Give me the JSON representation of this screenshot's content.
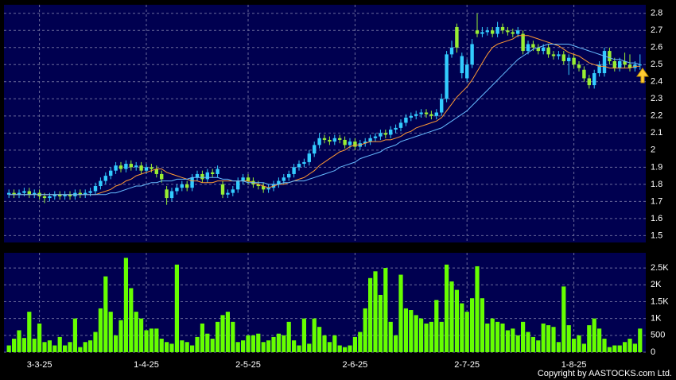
{
  "chart_data": [
    {
      "type": "candlestick",
      "up_color": "#33ccff",
      "down_color": "#99ee33",
      "ylim": [
        1.46,
        2.85
      ],
      "yticks": [
        1.5,
        1.6,
        1.7,
        1.8,
        1.9,
        2,
        2.1,
        2.2,
        2.3,
        2.4,
        2.5,
        2.6,
        2.7,
        2.8
      ],
      "grid": true,
      "categories": [
        null,
        null,
        null,
        null,
        null,
        null,
        "3-3-25",
        null,
        null,
        null,
        null,
        null,
        null,
        null,
        null,
        null,
        null,
        null,
        null,
        null,
        null,
        null,
        null,
        null,
        null,
        null,
        null,
        "1-4-25",
        null,
        null,
        null,
        null,
        null,
        null,
        null,
        null,
        null,
        null,
        null,
        null,
        null,
        null,
        null,
        null,
        null,
        null,
        null,
        "2-5-25",
        null,
        null,
        null,
        null,
        null,
        null,
        null,
        null,
        null,
        null,
        null,
        null,
        null,
        null,
        null,
        null,
        null,
        null,
        null,
        null,
        "2-6-25",
        null,
        null,
        null,
        null,
        null,
        null,
        null,
        null,
        null,
        null,
        null,
        null,
        null,
        null,
        null,
        null,
        null,
        null,
        null,
        null,
        null,
        "2-7-25",
        null,
        null,
        null,
        null,
        null,
        null,
        null,
        null,
        null,
        null,
        null,
        null,
        null,
        null,
        null,
        null,
        null,
        null,
        null,
        null,
        "1-8-25",
        null,
        null,
        null,
        null,
        null,
        null,
        null,
        null,
        null,
        null,
        null,
        null,
        null
      ],
      "open": [
        1.74,
        1.75,
        1.74,
        1.75,
        1.76,
        1.74,
        1.75,
        1.73,
        1.72,
        1.73,
        1.74,
        1.73,
        1.74,
        1.73,
        1.75,
        1.74,
        1.75,
        1.76,
        1.79,
        1.82,
        1.85,
        1.88,
        1.91,
        1.89,
        1.92,
        1.9,
        1.91,
        1.88,
        1.9,
        1.89,
        1.86,
        1.77,
        1.72,
        1.76,
        1.78,
        1.8,
        1.78,
        1.84,
        1.86,
        1.83,
        1.87,
        1.86,
        1.8,
        1.74,
        1.75,
        1.77,
        1.82,
        1.84,
        1.82,
        1.8,
        1.79,
        1.77,
        1.78,
        1.8,
        1.82,
        1.84,
        1.86,
        1.9,
        1.92,
        1.93,
        1.98,
        2.03,
        2.07,
        2.06,
        2.05,
        2.07,
        2.06,
        2.03,
        2.05,
        2.02,
        2.04,
        2.05,
        2.07,
        2.08,
        2.1,
        2.09,
        2.12,
        2.13,
        2.16,
        2.19,
        2.2,
        2.21,
        2.22,
        2.21,
        2.2,
        2.22,
        2.3,
        2.56,
        2.72,
        2.45,
        2.42,
        2.5,
        2.7,
        2.68,
        2.69,
        2.7,
        2.68,
        2.72,
        2.7,
        2.69,
        2.68,
        2.68,
        2.58,
        2.62,
        2.6,
        2.58,
        2.6,
        2.56,
        2.55,
        2.56,
        2.52,
        2.54,
        2.5,
        2.47,
        2.42,
        2.38,
        2.45,
        2.45,
        2.58,
        2.52,
        2.48,
        2.52,
        2.5,
        2.48,
        2.5
      ],
      "high": [
        1.77,
        1.77,
        1.77,
        1.78,
        1.78,
        1.77,
        1.77,
        1.75,
        1.75,
        1.76,
        1.76,
        1.76,
        1.76,
        1.77,
        1.77,
        1.77,
        1.78,
        1.81,
        1.84,
        1.87,
        1.9,
        1.93,
        1.93,
        1.94,
        1.94,
        1.93,
        1.93,
        1.92,
        1.92,
        1.91,
        1.88,
        1.79,
        1.78,
        1.8,
        1.82,
        1.82,
        1.86,
        1.88,
        1.88,
        1.89,
        1.89,
        1.91,
        1.82,
        1.77,
        1.79,
        1.84,
        1.86,
        1.86,
        1.84,
        1.82,
        1.81,
        1.8,
        1.82,
        1.84,
        1.86,
        1.88,
        1.92,
        1.94,
        1.95,
        2.0,
        2.05,
        2.1,
        2.09,
        2.08,
        2.09,
        2.09,
        2.08,
        2.07,
        2.07,
        2.06,
        2.07,
        2.09,
        2.1,
        2.12,
        2.12,
        2.14,
        2.15,
        2.18,
        2.21,
        2.22,
        2.23,
        2.24,
        2.24,
        2.23,
        2.24,
        2.33,
        2.58,
        2.64,
        2.74,
        2.57,
        2.53,
        2.65,
        2.8,
        2.72,
        2.72,
        2.72,
        2.75,
        2.74,
        2.72,
        2.71,
        2.72,
        2.7,
        2.64,
        2.64,
        2.62,
        2.62,
        2.62,
        2.58,
        2.58,
        2.58,
        2.56,
        2.56,
        2.52,
        2.49,
        2.44,
        2.47,
        2.52,
        2.6,
        2.6,
        2.54,
        2.54,
        2.57,
        2.56,
        2.52,
        2.56
      ],
      "low": [
        1.72,
        1.72,
        1.72,
        1.73,
        1.72,
        1.72,
        1.71,
        1.69,
        1.7,
        1.71,
        1.71,
        1.71,
        1.71,
        1.71,
        1.72,
        1.72,
        1.73,
        1.74,
        1.77,
        1.8,
        1.83,
        1.86,
        1.87,
        1.87,
        1.88,
        1.88,
        1.86,
        1.86,
        1.87,
        1.84,
        1.81,
        1.68,
        1.7,
        1.74,
        1.76,
        1.76,
        1.76,
        1.82,
        1.81,
        1.81,
        1.84,
        1.84,
        1.72,
        1.72,
        1.73,
        1.75,
        1.8,
        1.8,
        1.78,
        1.77,
        1.75,
        1.75,
        1.76,
        1.78,
        1.8,
        1.82,
        1.84,
        1.88,
        1.9,
        1.91,
        1.96,
        2.01,
        2.04,
        2.03,
        2.03,
        2.04,
        2.01,
        2.01,
        2.0,
        2.0,
        2.02,
        2.03,
        2.05,
        2.06,
        2.07,
        2.07,
        2.1,
        2.11,
        2.14,
        2.17,
        2.18,
        2.19,
        2.19,
        2.18,
        2.18,
        2.2,
        2.28,
        2.54,
        2.57,
        2.42,
        2.4,
        2.48,
        2.66,
        2.66,
        2.67,
        2.66,
        2.66,
        2.68,
        2.67,
        2.66,
        2.66,
        2.56,
        2.56,
        2.58,
        2.56,
        2.56,
        2.54,
        2.53,
        2.53,
        2.5,
        2.44,
        2.48,
        2.46,
        2.4,
        2.36,
        2.36,
        2.43,
        2.43,
        2.5,
        2.46,
        2.46,
        2.48,
        2.46,
        2.46,
        2.47
      ],
      "close": [
        1.75,
        1.74,
        1.75,
        1.76,
        1.74,
        1.75,
        1.73,
        1.72,
        1.73,
        1.74,
        1.73,
        1.74,
        1.73,
        1.75,
        1.74,
        1.75,
        1.76,
        1.79,
        1.82,
        1.85,
        1.88,
        1.91,
        1.89,
        1.92,
        1.9,
        1.91,
        1.88,
        1.9,
        1.89,
        1.86,
        1.83,
        1.72,
        1.76,
        1.78,
        1.8,
        1.78,
        1.84,
        1.86,
        1.83,
        1.87,
        1.86,
        1.89,
        1.74,
        1.75,
        1.77,
        1.82,
        1.84,
        1.82,
        1.8,
        1.79,
        1.77,
        1.78,
        1.8,
        1.82,
        1.84,
        1.86,
        1.9,
        1.92,
        1.93,
        1.98,
        2.03,
        2.07,
        2.06,
        2.05,
        2.07,
        2.06,
        2.03,
        2.05,
        2.02,
        2.04,
        2.05,
        2.07,
        2.08,
        2.1,
        2.09,
        2.12,
        2.13,
        2.16,
        2.19,
        2.2,
        2.21,
        2.22,
        2.21,
        2.2,
        2.22,
        2.3,
        2.56,
        2.6,
        2.6,
        2.55,
        2.5,
        2.62,
        2.68,
        2.69,
        2.7,
        2.68,
        2.72,
        2.7,
        2.69,
        2.68,
        2.7,
        2.58,
        2.62,
        2.6,
        2.58,
        2.6,
        2.56,
        2.55,
        2.56,
        2.52,
        2.54,
        2.5,
        2.48,
        2.42,
        2.38,
        2.45,
        2.5,
        2.58,
        2.52,
        2.48,
        2.52,
        2.5,
        2.48,
        2.5,
        2.5
      ],
      "series": [
        {
          "color": "#ff9933",
          "values": [
            1.74,
            1.74,
            1.74,
            1.74,
            1.74,
            1.74,
            1.74,
            1.74,
            1.74,
            1.74,
            1.74,
            1.74,
            1.74,
            1.74,
            1.74,
            1.74,
            1.74,
            1.74,
            1.75,
            1.76,
            1.77,
            1.79,
            1.8,
            1.82,
            1.83,
            1.85,
            1.86,
            1.87,
            1.88,
            1.89,
            1.89,
            1.87,
            1.86,
            1.85,
            1.84,
            1.83,
            1.82,
            1.82,
            1.81,
            1.81,
            1.81,
            1.82,
            1.82,
            1.82,
            1.82,
            1.82,
            1.82,
            1.82,
            1.81,
            1.8,
            1.79,
            1.78,
            1.79,
            1.8,
            1.8,
            1.81,
            1.82,
            1.83,
            1.84,
            1.86,
            1.88,
            1.91,
            1.93,
            1.95,
            1.97,
            1.99,
            2.0,
            2.02,
            2.03,
            2.03,
            2.04,
            2.05,
            2.05,
            2.05,
            2.06,
            2.06,
            2.07,
            2.08,
            2.1,
            2.11,
            2.13,
            2.14,
            2.15,
            2.16,
            2.17,
            2.19,
            2.23,
            2.27,
            2.31,
            2.34,
            2.37,
            2.41,
            2.46,
            2.51,
            2.56,
            2.6,
            2.62,
            2.63,
            2.64,
            2.65,
            2.67,
            2.67,
            2.67,
            2.66,
            2.65,
            2.64,
            2.63,
            2.62,
            2.61,
            2.59,
            2.57,
            2.56,
            2.55,
            2.53,
            2.51,
            2.5,
            2.49,
            2.49,
            2.48,
            2.48,
            2.48,
            2.48,
            2.48,
            2.49,
            2.49
          ]
        },
        {
          "color": "#66bbff",
          "values": [
            1.74,
            1.74,
            1.74,
            1.74,
            1.74,
            1.74,
            1.74,
            1.74,
            1.74,
            1.74,
            1.74,
            1.74,
            1.74,
            1.74,
            1.74,
            1.74,
            1.74,
            1.74,
            1.74,
            1.74,
            1.75,
            1.75,
            1.76,
            1.77,
            1.78,
            1.79,
            1.79,
            1.8,
            1.81,
            1.81,
            1.82,
            1.82,
            1.82,
            1.83,
            1.83,
            1.83,
            1.84,
            1.84,
            1.84,
            1.84,
            1.84,
            1.84,
            1.83,
            1.83,
            1.82,
            1.82,
            1.82,
            1.81,
            1.81,
            1.81,
            1.81,
            1.8,
            1.8,
            1.8,
            1.81,
            1.81,
            1.82,
            1.82,
            1.82,
            1.83,
            1.84,
            1.85,
            1.86,
            1.87,
            1.88,
            1.9,
            1.91,
            1.92,
            1.93,
            1.95,
            1.96,
            1.97,
            1.98,
            1.99,
            2.01,
            2.02,
            2.03,
            2.05,
            2.06,
            2.07,
            2.08,
            2.09,
            2.1,
            2.11,
            2.12,
            2.13,
            2.15,
            2.17,
            2.19,
            2.21,
            2.23,
            2.26,
            2.29,
            2.32,
            2.35,
            2.38,
            2.41,
            2.44,
            2.47,
            2.5,
            2.53,
            2.55,
            2.57,
            2.59,
            2.6,
            2.61,
            2.62,
            2.62,
            2.62,
            2.62,
            2.62,
            2.61,
            2.6,
            2.59,
            2.58,
            2.57,
            2.56,
            2.55,
            2.54,
            2.53,
            2.53,
            2.52,
            2.51,
            2.51,
            2.5
          ]
        }
      ]
    },
    {
      "type": "bar",
      "color": "#66ff00",
      "ylim": [
        0,
        2950
      ],
      "yticks": [
        0,
        500,
        {
          "value": 1000,
          "label": "1K"
        },
        {
          "value": 1500,
          "label": "1.5K"
        },
        {
          "value": 2000,
          "label": "2K"
        },
        {
          "value": 2500,
          "label": "2.5K"
        }
      ],
      "grid": true,
      "values": [
        200,
        400,
        650,
        420,
        1200,
        400,
        850,
        300,
        350,
        200,
        450,
        200,
        300,
        1000,
        150,
        300,
        350,
        600,
        1300,
        2250,
        1200,
        500,
        950,
        2800,
        1900,
        1200,
        1000,
        650,
        700,
        700,
        400,
        300,
        250,
        2600,
        350,
        300,
        200,
        450,
        850,
        550,
        400,
        900,
        1100,
        1200,
        900,
        300,
        350,
        500,
        500,
        550,
        300,
        350,
        450,
        550,
        500,
        900,
        350,
        200,
        1000,
        250,
        1000,
        750,
        500,
        300,
        500,
        200,
        150,
        200,
        450,
        600,
        1300,
        2200,
        2400,
        1700,
        2500,
        900,
        500,
        2300,
        1300,
        1250,
        1100,
        1000,
        850,
        900,
        1550,
        900,
        2600,
        2100,
        1850,
        1450,
        1200,
        1600,
        2550,
        1600,
        850,
        1000,
        900,
        850,
        650,
        700,
        500,
        900,
        600,
        450,
        350,
        850,
        800,
        750,
        300,
        1950,
        800,
        400,
        500,
        250,
        800,
        1000,
        700,
        400,
        150,
        200,
        200,
        300,
        400,
        250,
        700
      ]
    }
  ],
  "footer": "Copyright by AASTOCKS.com Ltd."
}
